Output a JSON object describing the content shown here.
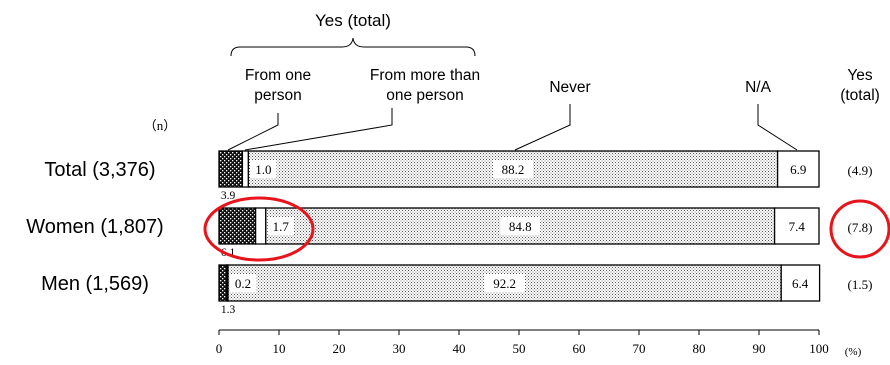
{
  "chart_data": {
    "type": "bar",
    "orientation": "horizontal",
    "stacked": true,
    "xlim": [
      0,
      100
    ],
    "x_ticks": [
      "0",
      "10",
      "20",
      "30",
      "40",
      "50",
      "60",
      "70",
      "80",
      "90",
      "100"
    ],
    "x_unit": "(%)",
    "n_label": "（n）",
    "group_label": "Yes (total)",
    "series": [
      {
        "name": "From one person",
        "pattern": "black-dotted",
        "values": [
          3.9,
          6.1,
          1.3
        ]
      },
      {
        "name": "From more than one person",
        "pattern": "white",
        "values": [
          1.0,
          1.7,
          0.2
        ]
      },
      {
        "name": "Never",
        "pattern": "gray-dotted",
        "values": [
          88.2,
          84.8,
          92.2
        ]
      },
      {
        "name": "N/A",
        "pattern": "white",
        "values": [
          6.9,
          7.4,
          6.4
        ]
      }
    ],
    "rows": [
      {
        "category": "Total",
        "n": "(3,376)",
        "labels": [
          "3.9",
          "1.0",
          "88.2",
          "6.9"
        ],
        "yes_total": "(4.9)"
      },
      {
        "category": "Women",
        "n": "(1,807)",
        "labels": [
          "6.1",
          "1.7",
          "84.8",
          "7.4"
        ],
        "yes_total": "(7.8)"
      },
      {
        "category": "Men",
        "n": "(1,569)",
        "labels": [
          "1.3",
          "0.2",
          "92.2",
          "6.4"
        ],
        "yes_total": "(1.5)"
      }
    ],
    "yes_total_column_label": "Yes (total)",
    "highlight_color": "#e8141c",
    "highlights": [
      "Women from-more-than-one-person segment",
      "Women yes-total value"
    ]
  }
}
